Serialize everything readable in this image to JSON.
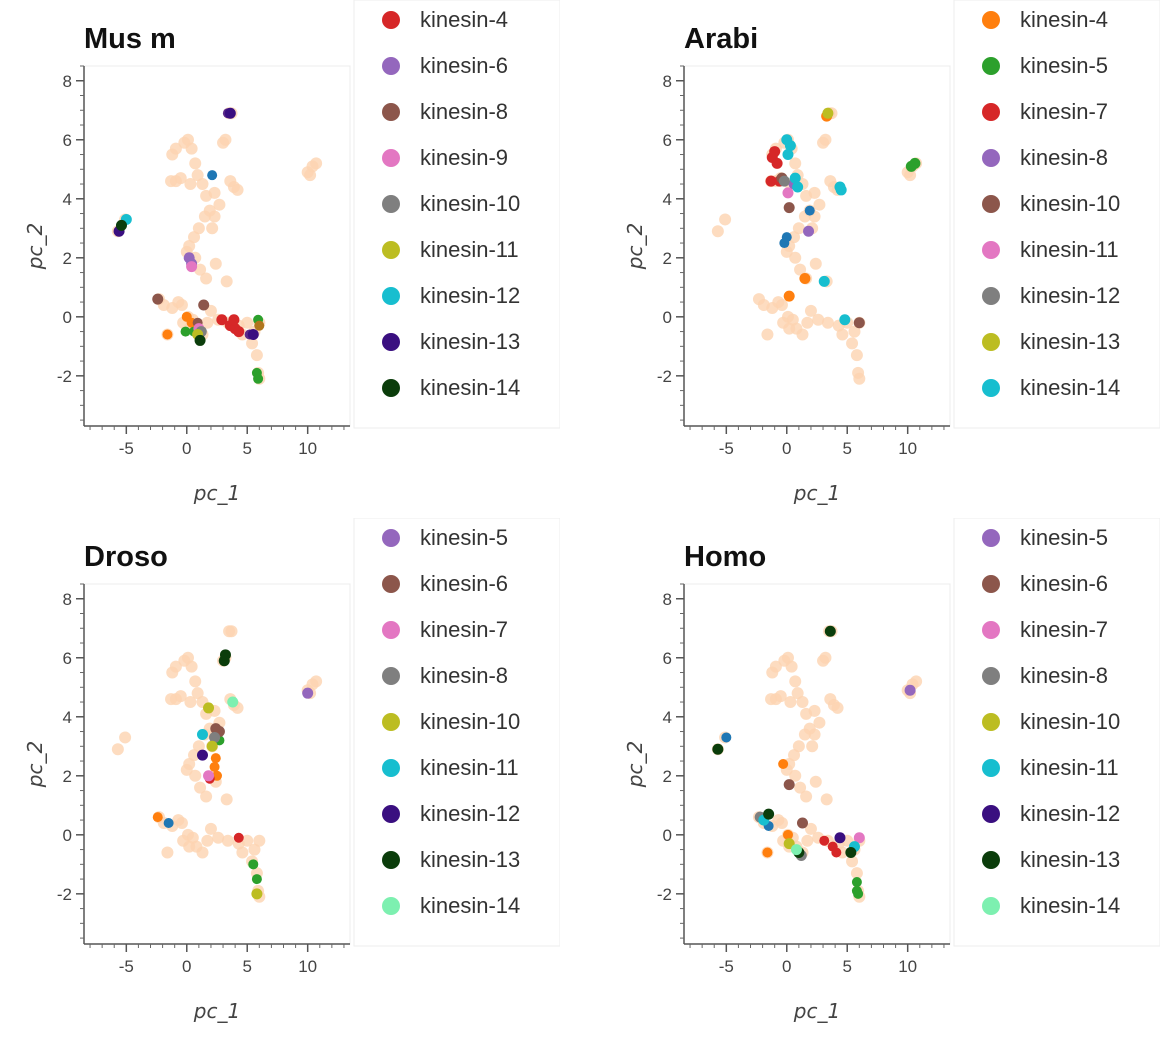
{
  "chart_data": [
    {
      "type": "scatter",
      "title": "Mus m",
      "xlabel": "pc_1",
      "ylabel": "pc_2",
      "xlim": [
        -8.5,
        13.5
      ],
      "ylim": [
        -3.7,
        8.5
      ],
      "xticks": [
        "-5",
        "0",
        "5",
        "10"
      ],
      "yticks": [
        "-2",
        "0",
        "2",
        "4",
        "6",
        "8"
      ],
      "grid": false,
      "legend_position": "right",
      "series": [
        {
          "name": "kinesin-4",
          "color": "#d62728",
          "points": [
            [
              2.9,
              -0.1
            ],
            [
              3.6,
              -0.3
            ],
            [
              4.0,
              -0.4
            ],
            [
              4.3,
              -0.5
            ],
            [
              3.9,
              -0.1
            ]
          ]
        },
        {
          "name": "kinesin-6",
          "color": "#9467bd",
          "points": [
            [
              0.2,
              2.0
            ],
            [
              0.4,
              1.8
            ]
          ]
        },
        {
          "name": "kinesin-8",
          "color": "#8c564b",
          "points": [
            [
              -2.4,
              0.6
            ],
            [
              1.4,
              0.4
            ]
          ]
        },
        {
          "name": "kinesin-9",
          "color": "#e377c2",
          "points": [
            [
              0.4,
              1.7
            ],
            [
              1.0,
              -0.4
            ]
          ]
        },
        {
          "name": "kinesin-10",
          "color": "#7f7f7f",
          "points": [
            [
              1.2,
              -0.5
            ]
          ]
        },
        {
          "name": "kinesin-11",
          "color": "#bcbd22",
          "points": [
            [
              0.9,
              -0.6
            ]
          ]
        },
        {
          "name": "kinesin-12",
          "color": "#17becf",
          "points": [
            [
              -5.0,
              3.3
            ]
          ]
        },
        {
          "name": "kinesin-13",
          "color": "#3a0f80",
          "points": [
            [
              -5.6,
              2.9
            ],
            [
              3.6,
              6.9
            ],
            [
              5.5,
              -0.6
            ]
          ]
        },
        {
          "name": "kinesin-14",
          "color": "#0b3d0b",
          "points": [
            [
              -5.4,
              3.1
            ],
            [
              1.1,
              -0.8
            ]
          ]
        }
      ],
      "other_series": [
        {
          "color": "#ff7f0e",
          "points": [
            [
              -1.6,
              -0.6
            ],
            [
              0.0,
              0.0
            ],
            [
              0.4,
              -0.2
            ]
          ]
        },
        {
          "color": "#1f77b4",
          "points": [
            [
              2.1,
              4.8
            ]
          ]
        },
        {
          "color": "#2ca02c",
          "points": [
            [
              -0.1,
              -0.5
            ],
            [
              0.6,
              -0.5
            ],
            [
              5.9,
              -0.1
            ],
            [
              5.8,
              -1.9
            ],
            [
              5.9,
              -2.1
            ]
          ]
        },
        {
          "color": "#8c564b",
          "points": [
            [
              0.9,
              -0.2
            ]
          ]
        },
        {
          "color": "#b0761e",
          "points": [
            [
              6.0,
              -0.3
            ]
          ]
        },
        {
          "color": "#5a2a8a",
          "points": [
            [
              3.4,
              6.9
            ],
            [
              5.2,
              -0.6
            ]
          ]
        }
      ]
    },
    {
      "type": "scatter",
      "title": "Arabi",
      "xlabel": "pc_1",
      "ylabel": "pc_2",
      "xlim": [
        -8.5,
        13.5
      ],
      "ylim": [
        -3.7,
        8.5
      ],
      "xticks": [
        "-5",
        "0",
        "5",
        "10"
      ],
      "yticks": [
        "-2",
        "0",
        "2",
        "4",
        "6",
        "8"
      ],
      "grid": false,
      "legend_position": "right",
      "series": [
        {
          "name": "kinesin-4",
          "color": "#ff7f0e",
          "points": [
            [
              0.2,
              0.7
            ],
            [
              1.5,
              1.3
            ],
            [
              3.3,
              6.8
            ]
          ]
        },
        {
          "name": "kinesin-5",
          "color": "#2ca02c",
          "points": [
            [
              10.3,
              5.1
            ],
            [
              10.6,
              5.2
            ]
          ]
        },
        {
          "name": "kinesin-7",
          "color": "#d62728",
          "points": [
            [
              -1.2,
              5.4
            ],
            [
              -1.0,
              5.6
            ],
            [
              -0.8,
              5.2
            ],
            [
              -1.3,
              4.6
            ],
            [
              -0.6,
              4.6
            ]
          ]
        },
        {
          "name": "kinesin-8",
          "color": "#9467bd",
          "points": [
            [
              1.8,
              2.9
            ],
            [
              0.6,
              4.5
            ]
          ]
        },
        {
          "name": "kinesin-10",
          "color": "#8c564b",
          "points": [
            [
              -0.4,
              4.7
            ],
            [
              0.2,
              3.7
            ],
            [
              6.0,
              -0.2
            ]
          ]
        },
        {
          "name": "kinesin-11",
          "color": "#e377c2",
          "points": [
            [
              0.1,
              4.2
            ]
          ]
        },
        {
          "name": "kinesin-12",
          "color": "#7f7f7f",
          "points": [
            [
              -0.2,
              4.6
            ]
          ]
        },
        {
          "name": "kinesin-13",
          "color": "#bcbd22",
          "points": [
            [
              3.4,
              6.9
            ]
          ]
        },
        {
          "name": "kinesin-14",
          "color": "#17becf",
          "points": [
            [
              0.0,
              6.0
            ],
            [
              0.3,
              5.8
            ],
            [
              0.1,
              5.5
            ],
            [
              0.7,
              4.7
            ],
            [
              0.9,
              4.4
            ],
            [
              4.4,
              4.4
            ],
            [
              4.5,
              4.3
            ],
            [
              3.1,
              1.2
            ],
            [
              4.8,
              -0.1
            ]
          ]
        }
      ],
      "other_series": [
        {
          "color": "#1f77b4",
          "points": [
            [
              -0.2,
              2.5
            ],
            [
              0.0,
              2.7
            ],
            [
              1.9,
              3.6
            ]
          ]
        }
      ]
    },
    {
      "type": "scatter",
      "title": "Droso",
      "xlabel": "pc_1",
      "ylabel": "pc_2",
      "xlim": [
        -8.5,
        13.5
      ],
      "ylim": [
        -3.7,
        8.5
      ],
      "xticks": [
        "-5",
        "0",
        "5",
        "10"
      ],
      "yticks": [
        "-2",
        "0",
        "2",
        "4",
        "6",
        "8"
      ],
      "grid": false,
      "legend_position": "right",
      "series": [
        {
          "name": "kinesin-5",
          "color": "#9467bd",
          "points": [
            [
              10.0,
              4.8
            ]
          ]
        },
        {
          "name": "kinesin-6",
          "color": "#8c564b",
          "points": [
            [
              2.7,
              3.5
            ],
            [
              2.4,
              3.6
            ]
          ]
        },
        {
          "name": "kinesin-7",
          "color": "#e377c2",
          "points": [
            [
              1.8,
              2.0
            ]
          ]
        },
        {
          "name": "kinesin-8",
          "color": "#7f7f7f",
          "points": [
            [
              2.3,
              3.3
            ]
          ]
        },
        {
          "name": "kinesin-10",
          "color": "#bcbd22",
          "points": [
            [
              1.8,
              4.3
            ],
            [
              2.1,
              3.0
            ],
            [
              5.8,
              -2.0
            ]
          ]
        },
        {
          "name": "kinesin-11",
          "color": "#17becf",
          "points": [
            [
              1.3,
              3.4
            ]
          ]
        },
        {
          "name": "kinesin-12",
          "color": "#3a0f80",
          "points": [
            [
              1.3,
              2.7
            ]
          ]
        },
        {
          "name": "kinesin-13",
          "color": "#0b3d0b",
          "points": [
            [
              3.1,
              5.9
            ],
            [
              3.2,
              6.1
            ]
          ]
        },
        {
          "name": "kinesin-14",
          "color": "#7df0b0",
          "points": [
            [
              3.8,
              4.5
            ]
          ]
        }
      ],
      "other_series": [
        {
          "color": "#ff7f0e",
          "points": [
            [
              2.4,
              2.6
            ],
            [
              2.3,
              2.3
            ],
            [
              2.5,
              2.0
            ],
            [
              -2.4,
              0.6
            ]
          ]
        },
        {
          "color": "#d62728",
          "points": [
            [
              4.3,
              -0.1
            ],
            [
              1.9,
              1.9
            ]
          ]
        },
        {
          "color": "#1f77b4",
          "points": [
            [
              -1.5,
              0.4
            ]
          ]
        },
        {
          "color": "#2ca02c",
          "points": [
            [
              5.5,
              -1.0
            ],
            [
              5.8,
              -1.5
            ],
            [
              2.7,
              3.2
            ]
          ]
        }
      ]
    },
    {
      "type": "scatter",
      "title": "Homo",
      "xlabel": "pc_1",
      "ylabel": "pc_2",
      "xlim": [
        -8.5,
        13.5
      ],
      "ylim": [
        -3.7,
        8.5
      ],
      "xticks": [
        "-5",
        "0",
        "5",
        "10"
      ],
      "yticks": [
        "-2",
        "0",
        "2",
        "4",
        "6",
        "8"
      ],
      "grid": false,
      "legend_position": "right",
      "series": [
        {
          "name": "kinesin-5",
          "color": "#9467bd",
          "points": [
            [
              10.2,
              4.9
            ]
          ]
        },
        {
          "name": "kinesin-6",
          "color": "#8c564b",
          "points": [
            [
              0.2,
              1.7
            ],
            [
              1.3,
              0.4
            ]
          ]
        },
        {
          "name": "kinesin-7",
          "color": "#e377c2",
          "points": [
            [
              6.0,
              -0.1
            ]
          ]
        },
        {
          "name": "kinesin-8",
          "color": "#7f7f7f",
          "points": [
            [
              -2.2,
              0.6
            ],
            [
              1.2,
              -0.7
            ]
          ]
        },
        {
          "name": "kinesin-10",
          "color": "#bcbd22",
          "points": [
            [
              0.2,
              -0.3
            ]
          ]
        },
        {
          "name": "kinesin-11",
          "color": "#17becf",
          "points": [
            [
              -1.9,
              0.5
            ],
            [
              5.6,
              -0.4
            ]
          ]
        },
        {
          "name": "kinesin-12",
          "color": "#3a0f80",
          "points": [
            [
              4.4,
              -0.1
            ]
          ]
        },
        {
          "name": "kinesin-13",
          "color": "#0b3d0b",
          "points": [
            [
              -5.7,
              2.9
            ],
            [
              3.6,
              6.9
            ],
            [
              -1.5,
              0.7
            ],
            [
              5.3,
              -0.6
            ],
            [
              1.0,
              -0.6
            ]
          ]
        },
        {
          "name": "kinesin-14",
          "color": "#7df0b0",
          "points": [
            [
              0.8,
              -0.5
            ]
          ]
        }
      ],
      "other_series": [
        {
          "color": "#1f77b4",
          "points": [
            [
              -5.0,
              3.3
            ],
            [
              -1.5,
              0.3
            ]
          ]
        },
        {
          "color": "#ff7f0e",
          "points": [
            [
              -0.3,
              2.4
            ],
            [
              -1.6,
              -0.6
            ],
            [
              0.1,
              0.0
            ]
          ]
        },
        {
          "color": "#d62728",
          "points": [
            [
              3.1,
              -0.2
            ],
            [
              3.8,
              -0.4
            ],
            [
              4.1,
              -0.6
            ]
          ]
        },
        {
          "color": "#2ca02c",
          "points": [
            [
              5.8,
              -1.6
            ],
            [
              5.9,
              -2.0
            ],
            [
              5.8,
              -1.9
            ]
          ]
        }
      ]
    }
  ]
}
